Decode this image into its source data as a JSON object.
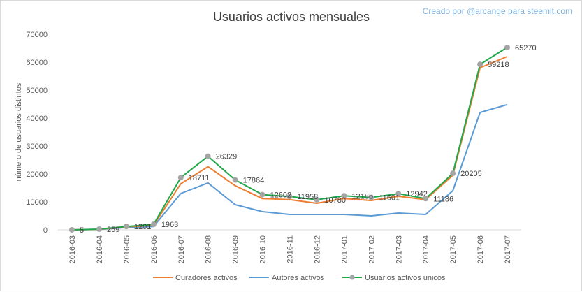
{
  "title": "Usuarios activos mensuales",
  "credit": "Creado por @arcange para steemit.com",
  "chart_data": {
    "type": "line",
    "title": "Usuarios activos mensuales",
    "xlabel": "",
    "ylabel": "número de usuarios distintos",
    "ylim": [
      0,
      70000
    ],
    "yticks": [
      0,
      10000,
      20000,
      30000,
      40000,
      50000,
      60000,
      70000
    ],
    "grid": false,
    "legend_position": "bottom",
    "categories": [
      "2016-03",
      "2016-04",
      "2016-05",
      "2016-06",
      "2016-07",
      "2016-08",
      "2016-09",
      "2016-10",
      "2016-11",
      "2016-12",
      "2017-01",
      "2017-02",
      "2017-03",
      "2017-04",
      "2017-05",
      "2017-06",
      "2017-07"
    ],
    "series": [
      {
        "name": "Curadores activos",
        "color": "#ed7d31",
        "values": [
          5,
          200,
          1100,
          1600,
          16500,
          22600,
          15800,
          11200,
          10800,
          9500,
          11200,
          10500,
          12000,
          10800,
          19500,
          58000,
          62000
        ]
      },
      {
        "name": "Autores activos",
        "color": "#5b9bd5",
        "values": [
          5,
          150,
          800,
          1200,
          13000,
          16800,
          9000,
          6500,
          5500,
          5500,
          5500,
          5000,
          6000,
          5500,
          14000,
          42000,
          44800
        ]
      },
      {
        "name": "Usuarios activos únicos",
        "color": "#1fa84a",
        "marker_color": "#a5a5a5",
        "values": [
          5,
          259,
          1201,
          1963,
          18711,
          26329,
          17864,
          12602,
          11958,
          10780,
          12186,
          11601,
          12942,
          11186,
          20205,
          59218,
          65270
        ],
        "labels": [
          "5",
          "259",
          "1201",
          "1963",
          "18711",
          "26329",
          "17864",
          "12602",
          "11958",
          "10780",
          "12186",
          "11601",
          "12942",
          "11186",
          "20205",
          "59218",
          "65270"
        ]
      }
    ]
  }
}
